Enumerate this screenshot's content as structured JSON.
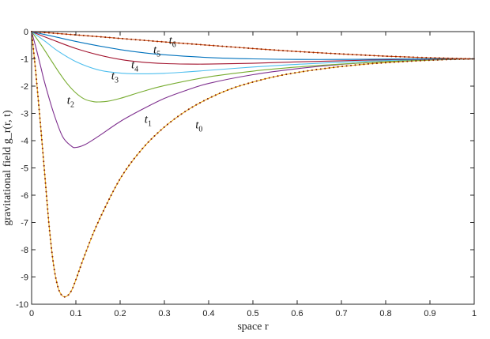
{
  "chart_data": {
    "type": "line",
    "xlabel": "space r",
    "ylabel": "gravitational field g_r(r, t)",
    "xlim": [
      0,
      1
    ],
    "ylim": [
      -10,
      0
    ],
    "x_ticks": [
      "0",
      "0.1",
      "0.2",
      "0.3",
      "0.4",
      "0.5",
      "0.6",
      "0.7",
      "0.8",
      "0.9",
      "1"
    ],
    "y_ticks": [
      "0",
      "-1",
      "-2",
      "-3",
      "-4",
      "-5",
      "-6",
      "-7",
      "-8",
      "-9",
      "-10"
    ],
    "grid": false,
    "series": [
      {
        "name": "t0",
        "color": "#EDB120",
        "markers": "dots",
        "marker_color": "#8B2500",
        "x": [
          0,
          0.01,
          0.02,
          0.03,
          0.04,
          0.05,
          0.06,
          0.07,
          0.08,
          0.09,
          0.1,
          0.12,
          0.15,
          0.2,
          0.25,
          0.3,
          0.35,
          0.4,
          0.45,
          0.5,
          0.55,
          0.6,
          0.65,
          0.7,
          0.75,
          0.8,
          0.85,
          0.9,
          0.95,
          1.0
        ],
        "y": [
          0,
          -1.6,
          -3.4,
          -5.3,
          -7.2,
          -8.6,
          -9.4,
          -9.7,
          -9.7,
          -9.5,
          -9.1,
          -8.2,
          -7.0,
          -5.4,
          -4.3,
          -3.5,
          -2.9,
          -2.45,
          -2.1,
          -1.85,
          -1.65,
          -1.5,
          -1.38,
          -1.28,
          -1.2,
          -1.14,
          -1.09,
          -1.05,
          -1.02,
          -1.0
        ]
      },
      {
        "name": "t1",
        "color": "#7E2F8E",
        "x": [
          0,
          0.01,
          0.02,
          0.03,
          0.05,
          0.07,
          0.09,
          0.1,
          0.12,
          0.15,
          0.2,
          0.25,
          0.3,
          0.35,
          0.4,
          0.5,
          0.6,
          0.7,
          0.8,
          0.9,
          1.0
        ],
        "y": [
          0,
          -0.6,
          -1.25,
          -1.9,
          -3.0,
          -3.85,
          -4.2,
          -4.25,
          -4.15,
          -3.85,
          -3.3,
          -2.85,
          -2.45,
          -2.15,
          -1.9,
          -1.58,
          -1.36,
          -1.2,
          -1.1,
          -1.04,
          -1.0
        ]
      },
      {
        "name": "t2",
        "color": "#77AC30",
        "x": [
          0,
          0.02,
          0.04,
          0.06,
          0.08,
          0.1,
          0.12,
          0.14,
          0.15,
          0.17,
          0.2,
          0.25,
          0.3,
          0.4,
          0.5,
          0.6,
          0.7,
          0.8,
          0.9,
          1.0
        ],
        "y": [
          0,
          -0.45,
          -0.95,
          -1.45,
          -1.9,
          -2.25,
          -2.48,
          -2.57,
          -2.58,
          -2.56,
          -2.45,
          -2.2,
          -1.98,
          -1.66,
          -1.45,
          -1.3,
          -1.19,
          -1.1,
          -1.04,
          -1.0
        ]
      },
      {
        "name": "t3",
        "color": "#4DBEEE",
        "x": [
          0,
          0.03,
          0.06,
          0.1,
          0.15,
          0.2,
          0.25,
          0.3,
          0.35,
          0.4,
          0.5,
          0.6,
          0.7,
          0.8,
          0.9,
          1.0
        ],
        "y": [
          0,
          -0.35,
          -0.72,
          -1.1,
          -1.4,
          -1.52,
          -1.55,
          -1.53,
          -1.48,
          -1.42,
          -1.3,
          -1.2,
          -1.12,
          -1.06,
          -1.02,
          -1.0
        ]
      },
      {
        "name": "t4",
        "color": "#A2142F",
        "x": [
          0,
          0.05,
          0.1,
          0.15,
          0.2,
          0.25,
          0.3,
          0.35,
          0.4,
          0.5,
          0.6,
          0.7,
          0.8,
          0.9,
          1.0
        ],
        "y": [
          0,
          -0.32,
          -0.62,
          -0.85,
          -1.02,
          -1.12,
          -1.17,
          -1.19,
          -1.19,
          -1.16,
          -1.11,
          -1.07,
          -1.03,
          -1.01,
          -1.0
        ]
      },
      {
        "name": "t5",
        "color": "#0072BD",
        "x": [
          0,
          0.05,
          0.1,
          0.15,
          0.2,
          0.25,
          0.3,
          0.4,
          0.5,
          0.6,
          0.7,
          0.8,
          0.9,
          1.0
        ],
        "y": [
          0,
          -0.18,
          -0.36,
          -0.52,
          -0.66,
          -0.77,
          -0.85,
          -0.95,
          -1.0,
          -1.02,
          -1.02,
          -1.01,
          -1.0,
          -1.0
        ]
      },
      {
        "name": "t6",
        "color": "#D95319",
        "markers": "dots",
        "marker_color": "#8B2500",
        "x": [
          0,
          0.1,
          0.2,
          0.3,
          0.4,
          0.5,
          0.6,
          0.7,
          0.8,
          0.9,
          1.0
        ],
        "y": [
          0,
          -0.12,
          -0.25,
          -0.38,
          -0.5,
          -0.62,
          -0.73,
          -0.82,
          -0.9,
          -0.96,
          -1.0
        ]
      }
    ],
    "annotations": [
      {
        "base": "t",
        "sub": "0",
        "x": 0.37,
        "y": -3.55
      },
      {
        "base": "t",
        "sub": "1",
        "x": 0.255,
        "y": -3.35
      },
      {
        "base": "t",
        "sub": "2",
        "x": 0.08,
        "y": -2.65
      },
      {
        "base": "t",
        "sub": "3",
        "x": 0.18,
        "y": -1.75
      },
      {
        "base": "t",
        "sub": "4",
        "x": 0.225,
        "y": -1.35
      },
      {
        "base": "t",
        "sub": "5",
        "x": 0.275,
        "y": -0.8
      },
      {
        "base": "t",
        "sub": "6",
        "x": 0.31,
        "y": -0.45
      }
    ]
  }
}
